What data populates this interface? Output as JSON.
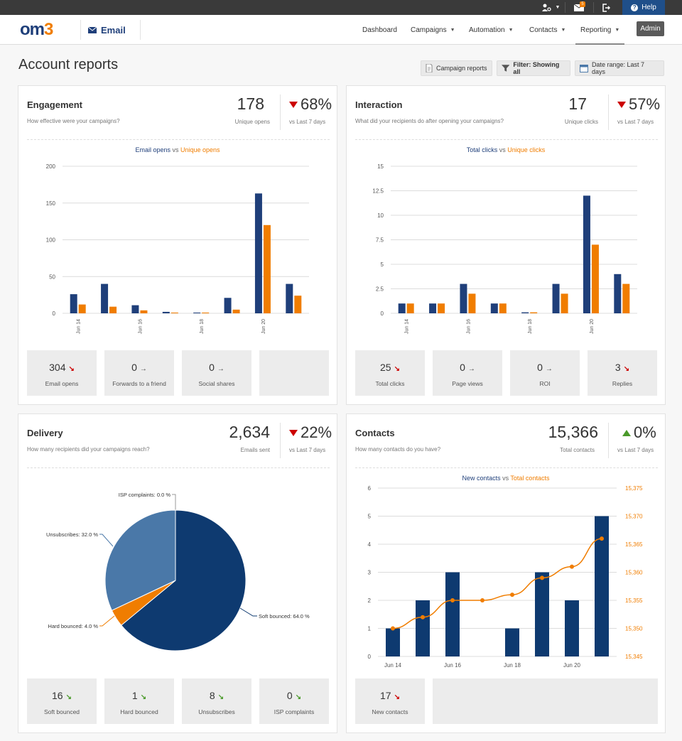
{
  "topbar": {
    "help_label": "Help",
    "notification_count": "5"
  },
  "nav": {
    "product": "Email",
    "items": [
      {
        "label": "Dashboard"
      },
      {
        "label": "Campaigns"
      },
      {
        "label": "Automation"
      },
      {
        "label": "Contacts"
      },
      {
        "label": "Reporting"
      }
    ],
    "admin_label": "Admin"
  },
  "page": {
    "title": "Account reports",
    "buttons": {
      "campaign_reports": "Campaign reports",
      "filter": "Filter: Showing all",
      "date_range": "Date range: Last 7 days"
    }
  },
  "cards": {
    "engagement": {
      "title": "Engagement",
      "subtitle": "How effective were your campaigns?",
      "metric_value": "178",
      "metric_label": "Unique opens",
      "change": "68%",
      "change_label": "vs Last 7 days",
      "legend_a": "Email opens",
      "legend_vs": " vs ",
      "legend_b": "Unique opens",
      "stats": [
        {
          "value": "304",
          "label": "Email opens",
          "trend": "down"
        },
        {
          "value": "0",
          "label": "Forwards to a friend",
          "trend": "flat"
        },
        {
          "value": "0",
          "label": "Social shares",
          "trend": "flat"
        }
      ]
    },
    "interaction": {
      "title": "Interaction",
      "subtitle": "What did your recipients do after opening your campaigns?",
      "metric_value": "17",
      "metric_label": "Unique clicks",
      "change": "57%",
      "change_label": "vs Last 7 days",
      "legend_a": "Total clicks",
      "legend_vs": " vs ",
      "legend_b": "Unique clicks",
      "stats": [
        {
          "value": "25",
          "label": "Total clicks",
          "trend": "down"
        },
        {
          "value": "0",
          "label": "Page views",
          "trend": "flat"
        },
        {
          "value": "0",
          "label": "ROI",
          "trend": "flat"
        },
        {
          "value": "3",
          "label": "Replies",
          "trend": "down"
        }
      ]
    },
    "delivery": {
      "title": "Delivery",
      "subtitle": "How many recipients did your campaigns reach?",
      "metric_value": "2,634",
      "metric_label": "Emails sent",
      "change": "22%",
      "change_label": "vs Last 7 days",
      "stats": [
        {
          "value": "16",
          "label": "Soft bounced",
          "trend": "down-green"
        },
        {
          "value": "1",
          "label": "Hard bounced",
          "trend": "down-green"
        },
        {
          "value": "8",
          "label": "Unsubscribes",
          "trend": "down-green"
        },
        {
          "value": "0",
          "label": "ISP complaints",
          "trend": "down-green"
        }
      ]
    },
    "contacts": {
      "title": "Contacts",
      "subtitle": "How many contacts do you have?",
      "metric_value": "15,366",
      "metric_label": "Total contacts",
      "change": "0%",
      "change_label": "vs Last 7 days",
      "legend_a": "New contacts",
      "legend_vs": " vs ",
      "legend_b": "Total contacts",
      "stats": [
        {
          "value": "17",
          "label": "New contacts",
          "trend": "down"
        }
      ]
    }
  },
  "colors": {
    "blue": "#1f3f7a",
    "orange": "#f07d00",
    "pie_light": "#4a78a8",
    "up": "#4a9a2a",
    "down": "#cc0000"
  },
  "chart_data": [
    {
      "type": "bar",
      "title": "Email opens vs Unique opens",
      "categories": [
        "Jun 14",
        "Jun 15",
        "Jun 16",
        "Jun 17",
        "Jun 18",
        "Jun 19",
        "Jun 20",
        "Jun 21"
      ],
      "tick_labels": [
        "Jun 14",
        "Jun 16",
        "Jun 18",
        "Jun 20"
      ],
      "series": [
        {
          "name": "Email opens",
          "color": "#1f3f7a",
          "values": [
            26,
            40,
            11,
            2,
            1,
            21,
            163,
            40
          ]
        },
        {
          "name": "Unique opens",
          "color": "#f07d00",
          "values": [
            12,
            9,
            4,
            1,
            1,
            5,
            120,
            24
          ]
        }
      ],
      "ylim": [
        0,
        200
      ],
      "yticks": [
        0,
        50,
        100,
        150,
        200
      ],
      "grid": true
    },
    {
      "type": "bar",
      "title": "Total clicks vs Unique clicks",
      "categories": [
        "Jun 14",
        "Jun 15",
        "Jun 16",
        "Jun 17",
        "Jun 18",
        "Jun 19",
        "Jun 20",
        "Jun 21"
      ],
      "tick_labels": [
        "Jun 14",
        "Jun 16",
        "Jun 18",
        "Jun 20"
      ],
      "series": [
        {
          "name": "Total clicks",
          "color": "#1f3f7a",
          "values": [
            1,
            1,
            3,
            1,
            0.1,
            3,
            12,
            4
          ]
        },
        {
          "name": "Unique clicks",
          "color": "#f07d00",
          "values": [
            1,
            1,
            2,
            1,
            0.1,
            2,
            7,
            3
          ]
        }
      ],
      "ylim": [
        0,
        15
      ],
      "yticks": [
        "0",
        "2.5",
        "5",
        "7.5",
        "10",
        "12.5",
        "15"
      ],
      "grid": true
    },
    {
      "type": "pie",
      "slices": [
        {
          "label": "ISP complaints: 0.0 %",
          "value": 0.0,
          "color": "#1f3f7a"
        },
        {
          "label": "Soft bounced: 64.0 %",
          "value": 64.0,
          "color": "#0e3a70"
        },
        {
          "label": "Hard bounced: 4.0 %",
          "value": 4.0,
          "color": "#f07d00"
        },
        {
          "label": "Unsubscribes: 32.0 %",
          "value": 32.0,
          "color": "#4a78a8"
        }
      ]
    },
    {
      "type": "bar",
      "title": "New contacts vs Total contacts",
      "categories": [
        "Jun 14",
        "Jun 15",
        "Jun 16",
        "Jun 17",
        "Jun 18",
        "Jun 19",
        "Jun 20",
        "Jun 21"
      ],
      "tick_labels": [
        "Jun 14",
        "Jun 16",
        "Jun 18",
        "Jun 20"
      ],
      "series": [
        {
          "name": "New contacts",
          "type": "bar",
          "axis": "left",
          "color": "#0e3a70",
          "values": [
            1,
            2,
            3,
            0,
            1,
            3,
            2,
            5
          ]
        },
        {
          "name": "Total contacts",
          "type": "line",
          "axis": "right",
          "color": "#f07d00",
          "values": [
            15350,
            15352,
            15355,
            15355,
            15356,
            15359,
            15361,
            15366
          ]
        }
      ],
      "ylim": [
        0,
        6
      ],
      "yticks": [
        0,
        1,
        2,
        3,
        4,
        5,
        6
      ],
      "y2lim": [
        15345,
        15375
      ],
      "y2ticks": [
        "15,345",
        "15,350",
        "15,355",
        "15,360",
        "15,365",
        "15,370",
        "15,375"
      ],
      "grid": true
    }
  ]
}
